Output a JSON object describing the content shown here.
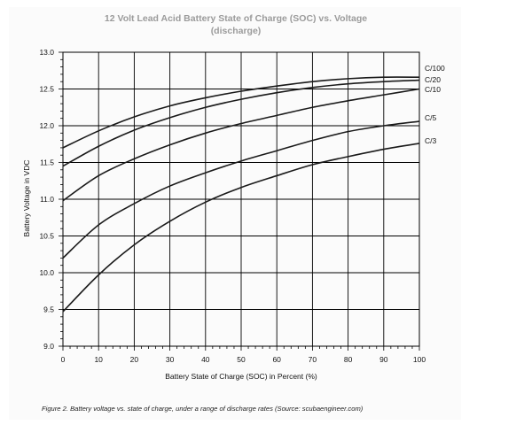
{
  "chart_data": {
    "type": "line",
    "title_line1": "12 Volt Lead Acid Battery State of Charge (SOC) vs. Voltage",
    "title_line2": "(discharge)",
    "xlabel": "Battery State of Charge (SOC) in Percent (%)",
    "ylabel": "Battery Voltage in VDC",
    "xlim": [
      0,
      100
    ],
    "ylim": [
      9.0,
      13.0
    ],
    "x_ticks": [
      0,
      10,
      20,
      30,
      40,
      50,
      60,
      70,
      80,
      90,
      100
    ],
    "y_ticks": [
      9.0,
      9.5,
      10.0,
      10.5,
      11.0,
      11.5,
      12.0,
      12.5,
      13.0
    ],
    "grid": true,
    "x": [
      0,
      10,
      20,
      30,
      40,
      50,
      60,
      70,
      80,
      90,
      100
    ],
    "series": [
      {
        "name": "C/100",
        "values": [
          11.7,
          11.93,
          12.12,
          12.27,
          12.38,
          12.47,
          12.54,
          12.6,
          12.64,
          12.66,
          12.66
        ]
      },
      {
        "name": "C/20",
        "values": [
          11.45,
          11.72,
          11.94,
          12.11,
          12.25,
          12.36,
          12.45,
          12.52,
          12.57,
          12.6,
          12.62
        ]
      },
      {
        "name": "C/10",
        "values": [
          10.98,
          11.32,
          11.55,
          11.74,
          11.9,
          12.03,
          12.14,
          12.25,
          12.34,
          12.42,
          12.5
        ]
      },
      {
        "name": "C/5",
        "values": [
          10.2,
          10.65,
          10.94,
          11.18,
          11.36,
          11.52,
          11.66,
          11.8,
          11.92,
          12.0,
          12.06
        ]
      },
      {
        "name": "C/3",
        "values": [
          9.47,
          9.97,
          10.38,
          10.7,
          10.96,
          11.16,
          11.32,
          11.47,
          11.58,
          11.68,
          11.76
        ]
      }
    ],
    "caption": "Figure 2. Battery voltage vs. state of charge, under a range of discharge rates (Source: scubaengineer.com)"
  }
}
